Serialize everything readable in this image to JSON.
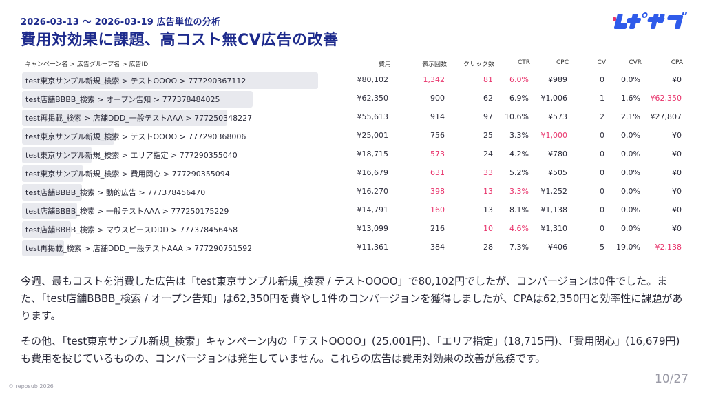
{
  "header": {
    "period": "2026-03-13 〜 2026-03-19 広告単位の分析",
    "title": "費用対効果に課題、高コスト無CV広告の改善"
  },
  "logo": {
    "text": "レポサブ",
    "color": "#2f5bea"
  },
  "table": {
    "headers": {
      "name": "キャンペーン名 > 広告グループ名 > 広告ID",
      "cost": "費用",
      "impressions": "表示回数",
      "clicks": "クリック数",
      "ctr": "CTR",
      "cpc": "CPC",
      "cv": "CV",
      "cvr": "CVR",
      "cpa": "CPA"
    },
    "rows": [
      {
        "name": "test東京サンプル新規_検索 > テストOOOO > 777290367112",
        "cost": "¥80,102",
        "cost_share": 1.0,
        "impressions": "1,342",
        "clicks": "81",
        "ctr": "6.0%",
        "cpc": "¥989",
        "cv": "0",
        "cvr": "0.0%",
        "cpa": "¥0",
        "hl": {
          "impressions": true,
          "clicks": true,
          "ctr": true
        }
      },
      {
        "name": "test店舗BBBB_検索 > オープン告知 > 777378484025",
        "cost": "¥62,350",
        "cost_share": 0.778,
        "impressions": "900",
        "clicks": "62",
        "ctr": "6.9%",
        "cpc": "¥1,006",
        "cv": "1",
        "cvr": "1.6%",
        "cpa": "¥62,350",
        "hl": {
          "cpa": true
        }
      },
      {
        "name": "test再掲載_検索 > 店舗DDD_一般テストAAA > 777250348227",
        "cost": "¥55,613",
        "cost_share": 0.694,
        "impressions": "914",
        "clicks": "97",
        "ctr": "10.6%",
        "cpc": "¥573",
        "cv": "2",
        "cvr": "2.1%",
        "cpa": "¥27,807",
        "hl": {}
      },
      {
        "name": "test東京サンプル新規_検索 > テストOOOO > 777290368006",
        "cost": "¥25,001",
        "cost_share": 0.312,
        "impressions": "756",
        "clicks": "25",
        "ctr": "3.3%",
        "cpc": "¥1,000",
        "cv": "0",
        "cvr": "0.0%",
        "cpa": "¥0",
        "hl": {
          "cpc": true
        }
      },
      {
        "name": "test東京サンプル新規_検索 > エリア指定 > 777290355040",
        "cost": "¥18,715",
        "cost_share": 0.234,
        "impressions": "573",
        "clicks": "24",
        "ctr": "4.2%",
        "cpc": "¥780",
        "cv": "0",
        "cvr": "0.0%",
        "cpa": "¥0",
        "hl": {
          "impressions": true
        }
      },
      {
        "name": "test東京サンプル新規_検索 > 費用関心 > 777290355094",
        "cost": "¥16,679",
        "cost_share": 0.208,
        "impressions": "631",
        "clicks": "33",
        "ctr": "5.2%",
        "cpc": "¥505",
        "cv": "0",
        "cvr": "0.0%",
        "cpa": "¥0",
        "hl": {
          "impressions": true,
          "clicks": true
        }
      },
      {
        "name": "test店舗BBBB_検索 > 動的広告 > 777378456470",
        "cost": "¥16,270",
        "cost_share": 0.203,
        "impressions": "398",
        "clicks": "13",
        "ctr": "3.3%",
        "cpc": "¥1,252",
        "cv": "0",
        "cvr": "0.0%",
        "cpa": "¥0",
        "hl": {
          "impressions": true,
          "clicks": true,
          "ctr": true
        }
      },
      {
        "name": "test店舗BBBB_検索 > 一般テストAAA > 777250175229",
        "cost": "¥14,791",
        "cost_share": 0.185,
        "impressions": "160",
        "clicks": "13",
        "ctr": "8.1%",
        "cpc": "¥1,138",
        "cv": "0",
        "cvr": "0.0%",
        "cpa": "¥0",
        "hl": {
          "impressions": true
        }
      },
      {
        "name": "test店舗BBBB_検索 > マウスピースDDD > 777378456458",
        "cost": "¥13,099",
        "cost_share": 0.164,
        "impressions": "216",
        "clicks": "10",
        "ctr": "4.6%",
        "cpc": "¥1,310",
        "cv": "0",
        "cvr": "0.0%",
        "cpa": "¥0",
        "hl": {
          "clicks": true,
          "ctr": true
        }
      },
      {
        "name": "test再掲載_検索 > 店舗DDD_一般テストAAA > 777290751592",
        "cost": "¥11,361",
        "cost_share": 0.142,
        "impressions": "384",
        "clicks": "28",
        "ctr": "7.3%",
        "cpc": "¥406",
        "cv": "5",
        "cvr": "19.0%",
        "cpa": "¥2,138",
        "hl": {
          "cpa": true
        }
      }
    ]
  },
  "body": {
    "paragraph1": "今週、最もコストを消費した広告は「test東京サンプル新規_検索 / テストOOOO」で80,102円でしたが、コンバージョンは0件でした。また、「test店舗BBBB_検索 / オープン告知」は62,350円を費やし1件のコンバージョンを獲得しましたが、CPAは62,350円と効率性に課題があります。",
    "paragraph2": "その他、「test東京サンプル新規_検索」キャンペーン内の「テストOOOO」(25,001円)、「エリア指定」(18,715円)、「費用関心」(16,679円)も費用を投じているものの、コンバージョンは発生していません。これらの広告は費用対効果の改善が急務です。"
  },
  "footer": {
    "copyright": "© reposub 2026",
    "page": "10/27"
  },
  "colors": {
    "title": "#1d2a8c",
    "highlight": "#e8336b",
    "bar": "#e8e9ee"
  }
}
